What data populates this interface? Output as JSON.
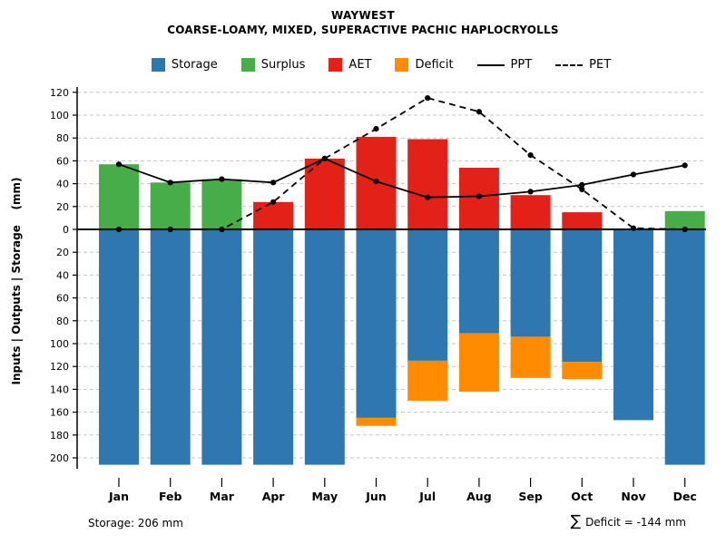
{
  "header": {
    "title": "WAYWEST",
    "subtitle": "COARSE-LOAMY, MIXED, SUPERACTIVE PACHIC HAPLOCRYOLLS"
  },
  "footer": {
    "storage_note": "Storage: 206 mm",
    "sigma": "∑",
    "deficit_note": "Deficit = -144 mm"
  },
  "chart_data": {
    "type": "bar",
    "title": "WAYWEST",
    "subtitle": "COARSE-LOAMY, MIXED, SUPERACTIVE PACHIC HAPLOCRYOLLS",
    "ylabel": "Inputs | Outputs | Storage    (mm)",
    "categories": [
      "Jan",
      "Feb",
      "Mar",
      "Apr",
      "May",
      "Jun",
      "Jul",
      "Aug",
      "Sep",
      "Oct",
      "Nov",
      "Dec"
    ],
    "y_upper_max": 120,
    "y_lower_tick_max": 200,
    "y_lower_max": 206,
    "y_tick_step": 20,
    "grid": "dashed-horizontal",
    "legend_position": "top",
    "series": [
      {
        "name": "Storage",
        "role": "storage",
        "type": "bar",
        "direction": "down",
        "legend": "swatch",
        "color": "#2E77B0",
        "values": [
          206,
          206,
          206,
          206,
          206,
          165,
          115,
          91,
          94,
          116,
          167,
          206
        ]
      },
      {
        "name": "Surplus",
        "role": "surplus",
        "type": "bar",
        "direction": "up",
        "legend": "swatch",
        "color": "#47AD49",
        "values": [
          57,
          41,
          44,
          0,
          0,
          0,
          0,
          0,
          0,
          0,
          0,
          16
        ]
      },
      {
        "name": "AET",
        "role": "aet",
        "type": "bar",
        "direction": "up",
        "legend": "swatch",
        "color": "#E32119",
        "values": [
          0,
          0,
          0,
          24,
          62,
          81,
          79,
          54,
          30,
          15,
          0,
          0
        ]
      },
      {
        "name": "Deficit",
        "role": "deficit",
        "type": "bar",
        "direction": "down",
        "legend": "swatch",
        "color": "#FF8C00",
        "values": [
          0,
          0,
          0,
          0,
          0,
          7,
          35,
          51,
          36,
          15,
          0,
          0
        ]
      },
      {
        "name": "PPT",
        "role": "ppt",
        "type": "line",
        "style": "solid",
        "legend": "line-solid",
        "color": "#000000",
        "values": [
          57,
          41,
          44,
          41,
          62,
          42,
          28,
          29,
          33,
          39,
          48,
          56
        ]
      },
      {
        "name": "PET",
        "role": "pet",
        "type": "line",
        "style": "dashed",
        "legend": "line-dashed",
        "color": "#000000",
        "values": [
          0,
          0,
          0,
          24,
          62,
          88,
          115,
          103,
          65,
          35,
          1,
          0
        ]
      }
    ],
    "annotations": [
      "Storage: 206 mm",
      "∑ Deficit = -144 mm"
    ]
  }
}
